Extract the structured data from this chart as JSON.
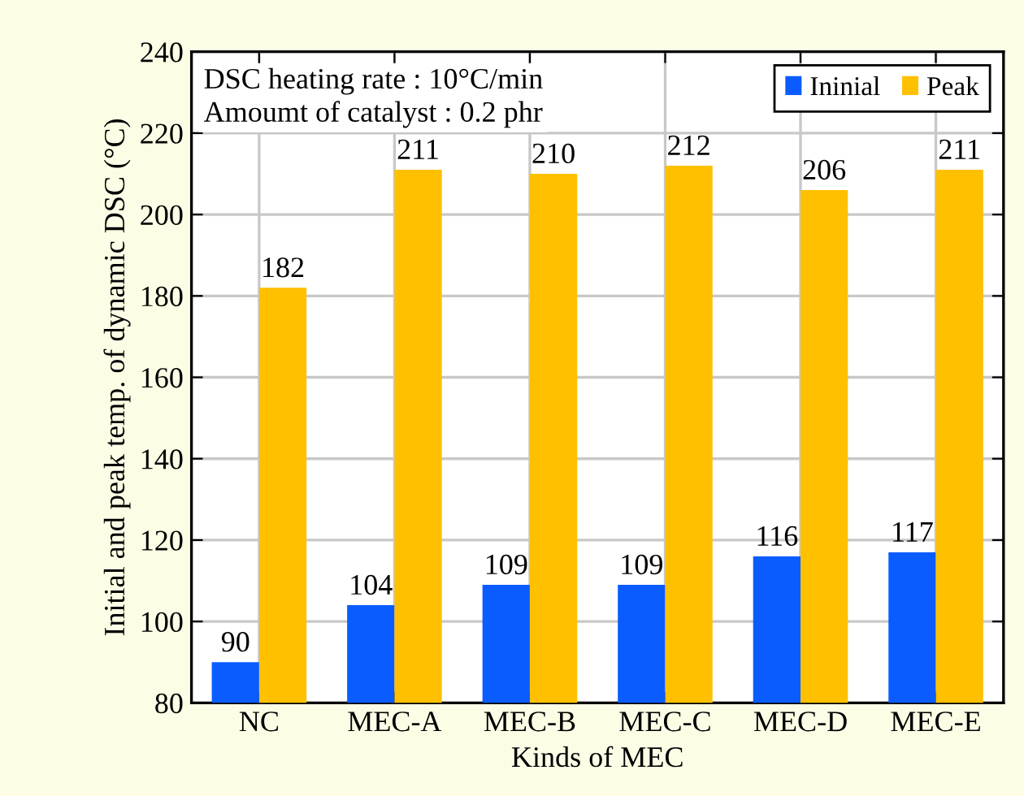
{
  "chart_data": {
    "type": "bar",
    "xlabel": "Kinds of MEC",
    "ylabel": "Initial and peak temp. of dynamic DSC (°C)",
    "categories": [
      "NC",
      "MEC-A",
      "MEC-B",
      "MEC-C",
      "MEC-D",
      "MEC-E"
    ],
    "series": [
      {
        "name": "Ininial",
        "color": "#0a5cff",
        "values": [
          90,
          104,
          109,
          109,
          116,
          117
        ]
      },
      {
        "name": "Peak",
        "color": "#ffc000",
        "values": [
          182,
          211,
          210,
          212,
          206,
          211
        ]
      }
    ],
    "ylim": [
      80,
      240
    ],
    "yticks": [
      80,
      100,
      120,
      140,
      160,
      180,
      200,
      220,
      240
    ],
    "annotations": [
      "DSC heating rate : 10°C/min",
      "Amoumt of catalyst : 0.2 phr"
    ],
    "data_labels": true,
    "grid": true,
    "legend": "top right"
  }
}
